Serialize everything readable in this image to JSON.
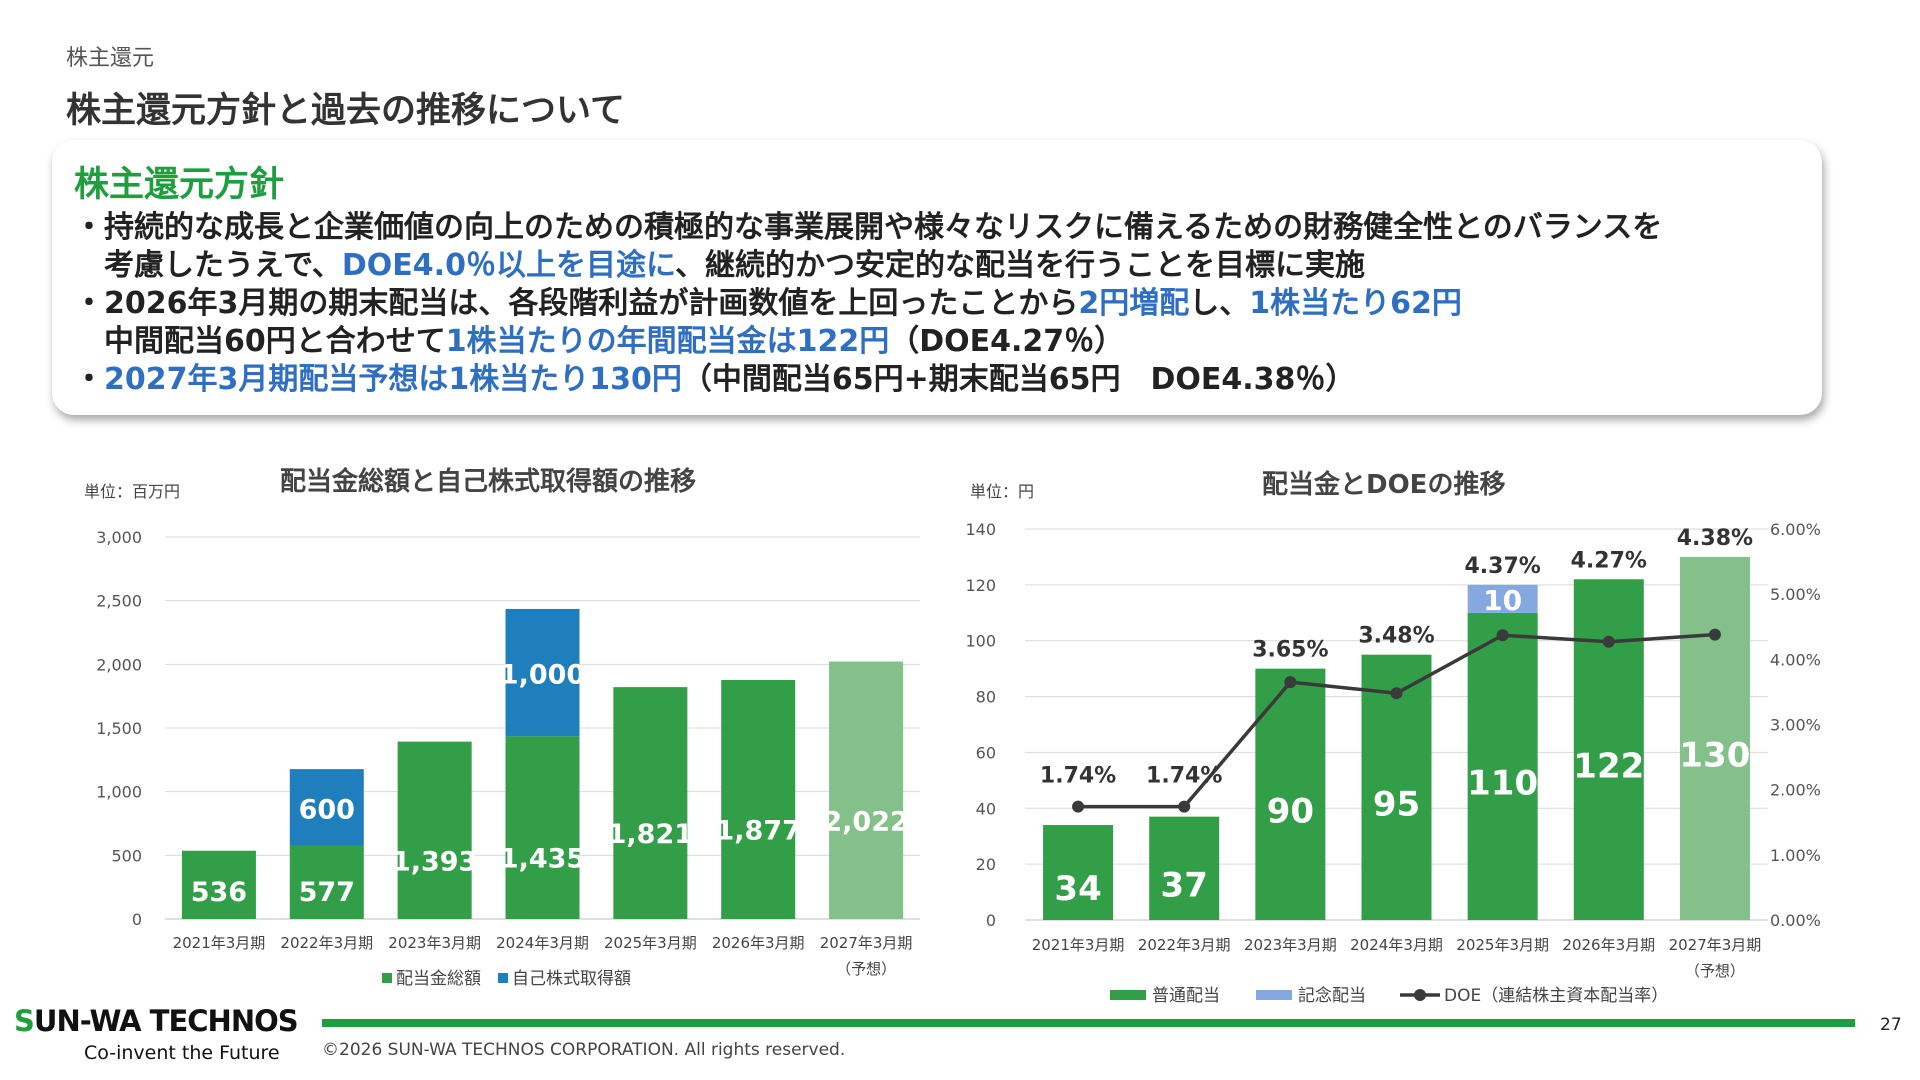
{
  "header": {
    "section": "株主還元",
    "title": "株主還元方針と過去の推移について"
  },
  "policy": {
    "heading": "株主還元方針",
    "line1": "・持続的な成長と企業価値の向上のための積極的な事業展開や様々なリスクに備えるための財務健全性とのバランスを",
    "line2_a": "考慮したうえで、",
    "line2_hl": "DOE4.0％以上を目途に",
    "line2_b": "、継続的かつ安定的な配当を行うことを目標に実施",
    "line3_a": "・2026年3月期の期末配当は、各段階利益が計画数値を上回ったことから",
    "line3_hl1": "2円増配",
    "line3_b": "し、",
    "line3_hl2": "1株当たり62円",
    "line4_a": "中間配当60円と合わせて",
    "line4_hl": "1株当たりの年間配当金は122円",
    "line4_b": "（DOE4.27％）",
    "line5_a": "・",
    "line5_hl": "2027年3月期配当予想は1株当たり130円",
    "line5_b": "（中間配当65円+期末配当65円　DOE4.38％）"
  },
  "colors": {
    "green": "#339e48",
    "green_forecast": "#83c08a",
    "blue": "#1f7fbd",
    "light_blue": "#86a8e0",
    "doe_line": "#3a3a3a",
    "grid": "#d9d9d9",
    "accent_text": "#2f6fc1",
    "brand_green": "#1e9e3e"
  },
  "chart_data": [
    {
      "type": "bar",
      "stacked": true,
      "title": "配当金総額と自己株式取得額の推移",
      "unit": "単位：百万円",
      "categories": [
        "2021年3月期",
        "2022年3月期",
        "2023年3月期",
        "2024年3月期",
        "2025年3月期",
        "2026年3月期",
        "2027年3月期"
      ],
      "category_note": {
        "index": 6,
        "text": "（予想）"
      },
      "forecast_index": 6,
      "series": [
        {
          "name": "配当金総額",
          "values": [
            536,
            577,
            1393,
            1435,
            1821,
            1877,
            2022
          ],
          "labels": [
            "536",
            "577",
            "1,393",
            "1,435",
            "1,821",
            "1,877",
            "2,022"
          ]
        },
        {
          "name": "自己株式取得額",
          "values": [
            0,
            600,
            0,
            1000,
            0,
            0,
            0
          ],
          "labels": [
            "",
            "600",
            "",
            "1,000",
            "",
            "",
            ""
          ]
        }
      ],
      "ylim": [
        0,
        3000
      ],
      "yticks": [
        0,
        500,
        1000,
        1500,
        2000,
        2500,
        3000
      ],
      "ytick_labels": [
        "0",
        "500",
        "1,000",
        "1,500",
        "2,000",
        "2,500",
        "3,000"
      ],
      "grid": true,
      "legend": "bottom"
    },
    {
      "type": "bar",
      "stacked": true,
      "title": "配当金とDOEの推移",
      "unit": "単位：円",
      "categories": [
        "2021年3月期",
        "2022年3月期",
        "2023年3月期",
        "2024年3月期",
        "2025年3月期",
        "2026年3月期",
        "2027年3月期"
      ],
      "category_note": {
        "index": 6,
        "text": "（予想）"
      },
      "forecast_index": 6,
      "series": [
        {
          "name": "普通配当",
          "values": [
            34,
            37,
            90,
            95,
            110,
            122,
            130
          ],
          "labels": [
            "34",
            "37",
            "90",
            "95",
            "110",
            "122",
            "130"
          ]
        },
        {
          "name": "記念配当",
          "values": [
            0,
            0,
            0,
            0,
            10,
            0,
            0
          ],
          "labels": [
            "",
            "",
            "",
            "",
            "10",
            "",
            ""
          ]
        },
        {
          "name": "DOE（連結株主資本配当率）",
          "type": "line",
          "axis": "right",
          "values": [
            1.74,
            1.74,
            3.65,
            3.48,
            4.37,
            4.27,
            4.38
          ],
          "labels": [
            "1.74%",
            "1.74%",
            "3.65%",
            "3.48%",
            "4.37%",
            "4.27%",
            "4.38%"
          ]
        }
      ],
      "ylim": [
        0,
        140
      ],
      "yticks": [
        0,
        20,
        40,
        60,
        80,
        100,
        120,
        140
      ],
      "ytick_labels": [
        "0",
        "20",
        "40",
        "60",
        "80",
        "100",
        "120",
        "140"
      ],
      "y2lim": [
        0,
        6
      ],
      "y2ticks": [
        0,
        1,
        2,
        3,
        4,
        5,
        6
      ],
      "y2tick_labels": [
        "0.00%",
        "1.00%",
        "2.00%",
        "3.00%",
        "4.00%",
        "5.00%",
        "6.00%"
      ],
      "grid": true,
      "legend": "bottom"
    }
  ],
  "footer": {
    "logo_name": "SUN-WA TECHNOS",
    "logo_tagline": "Co-invent the Future",
    "copyright": "©2026 SUN-WA TECHNOS CORPORATION. All rights reserved.",
    "page_number": "27"
  }
}
